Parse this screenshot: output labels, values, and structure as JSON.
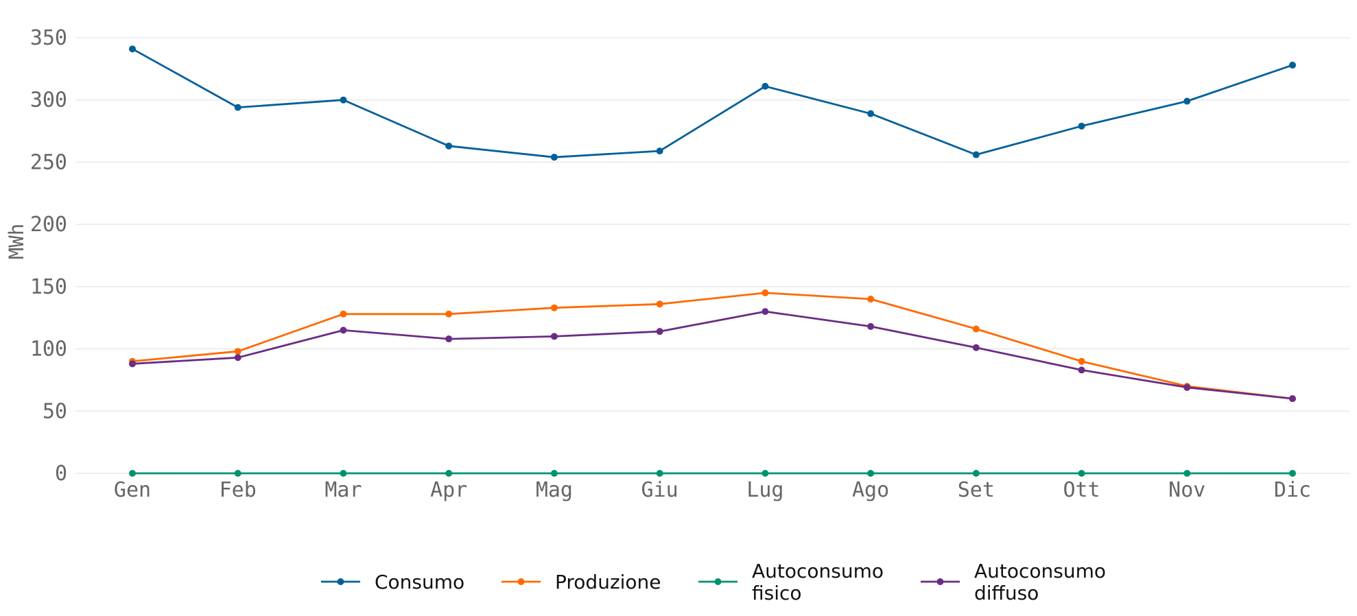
{
  "chart_data": {
    "type": "line",
    "categories": [
      "Gen",
      "Feb",
      "Mar",
      "Apr",
      "Mag",
      "Giu",
      "Lug",
      "Ago",
      "Set",
      "Ott",
      "Nov",
      "Dic"
    ],
    "ylabel": "MWh",
    "xlabel": "",
    "ylim": [
      0,
      350
    ],
    "yticks": [
      0,
      50,
      100,
      150,
      200,
      250,
      300,
      350
    ],
    "grid": true,
    "legend_position": "bottom",
    "series": [
      {
        "name": "Consumo",
        "color": "#00609a",
        "values": [
          341,
          294,
          300,
          263,
          254,
          259,
          311,
          289,
          256,
          279,
          299,
          328
        ]
      },
      {
        "name": "Produzione",
        "color": "#ff6a00",
        "values": [
          90,
          98,
          128,
          128,
          133,
          136,
          145,
          140,
          116,
          90,
          70,
          60
        ]
      },
      {
        "name": "Autoconsumo fisico",
        "label_lines": [
          "Autoconsumo",
          "fisico"
        ],
        "color": "#00926e",
        "values": [
          0,
          0,
          0,
          0,
          0,
          0,
          0,
          0,
          0,
          0,
          0,
          0
        ]
      },
      {
        "name": "Autoconsumo diffuso",
        "label_lines": [
          "Autoconsumo",
          "diffuso"
        ],
        "color": "#6a2c85",
        "values": [
          88,
          93,
          115,
          108,
          110,
          114,
          130,
          118,
          101,
          83,
          69,
          60
        ]
      }
    ]
  }
}
